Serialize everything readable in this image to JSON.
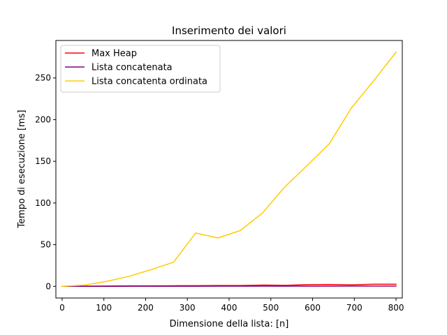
{
  "chart_data": {
    "type": "line",
    "title": "Inserimento dei valori",
    "xlabel": "Dimensione della lista: [n]",
    "ylabel": "Tempo di esecuzione [ms]",
    "xlim": [
      -15,
      815
    ],
    "ylim": [
      -14,
      295
    ],
    "xticks": [
      0,
      100,
      200,
      300,
      400,
      500,
      600,
      700,
      800
    ],
    "yticks": [
      0,
      50,
      100,
      150,
      200,
      250
    ],
    "grid": false,
    "legend_position": "top-left",
    "series": [
      {
        "name": "Max Heap",
        "color": "#ff0000",
        "x": [
          0,
          53,
          107,
          160,
          213,
          267,
          320,
          373,
          427,
          480,
          533,
          587,
          640,
          693,
          747,
          800
        ],
        "y": [
          0,
          0.2,
          0.3,
          0.5,
          0.5,
          0.7,
          0.8,
          1.0,
          1.0,
          1.5,
          1.2,
          2.0,
          2.2,
          1.8,
          2.5,
          2.5
        ]
      },
      {
        "name": "Lista concatenata",
        "color": "#800080",
        "x": [
          0,
          53,
          107,
          160,
          213,
          267,
          320,
          373,
          427,
          480,
          533,
          587,
          640,
          693,
          747,
          800
        ],
        "y": [
          0,
          0,
          0,
          0.1,
          0.1,
          0.1,
          0.1,
          0.2,
          0.2,
          0.2,
          0.2,
          0.2,
          0.2,
          0.3,
          0.3,
          0.3
        ]
      },
      {
        "name": "Lista concatenta ordinata",
        "color": "#ffcc00",
        "x": [
          0,
          53,
          107,
          160,
          213,
          267,
          320,
          373,
          427,
          480,
          533,
          587,
          640,
          693,
          747,
          800
        ],
        "y": [
          0,
          1.5,
          6,
          12,
          20,
          29,
          64,
          58,
          67,
          88,
          119,
          145,
          171,
          214,
          247,
          281
        ]
      }
    ]
  }
}
